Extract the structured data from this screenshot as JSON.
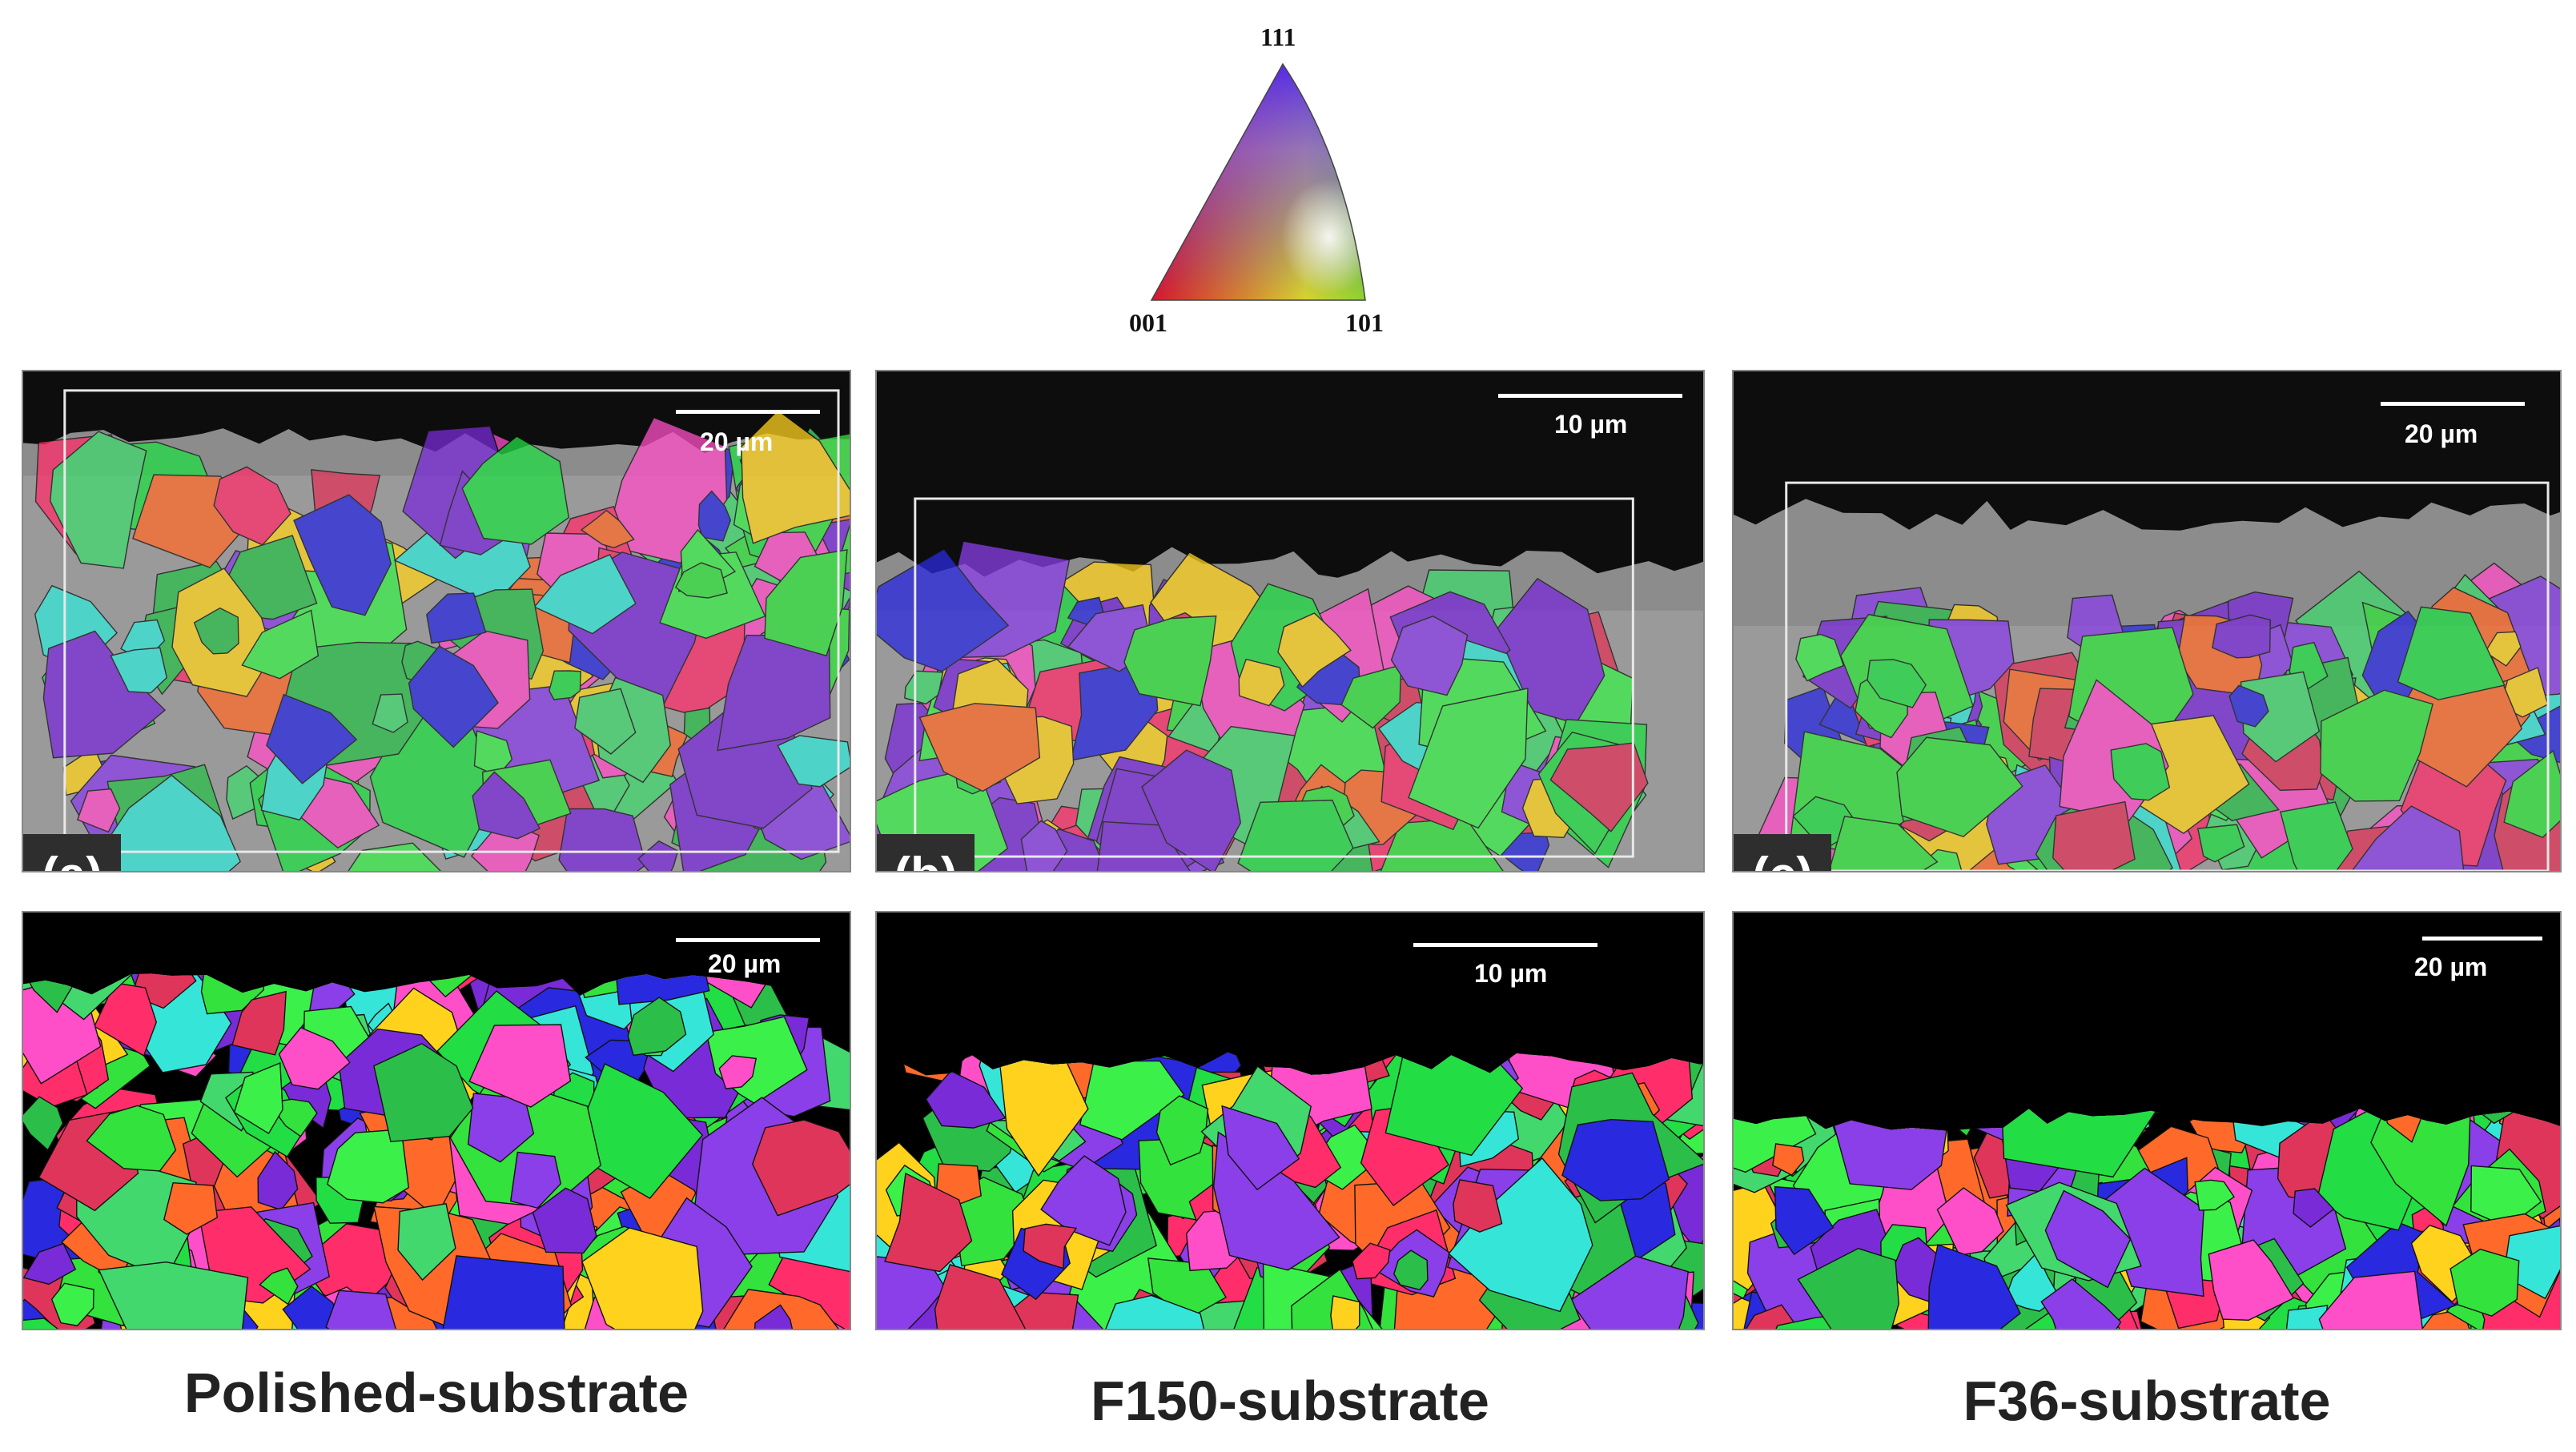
{
  "ipf": {
    "top_label": "111",
    "left_label": "001",
    "right_label": "101"
  },
  "panels": [
    {
      "tag": "(a)",
      "sem_scale": "20 µm",
      "ebsd_scale": "20 µm",
      "caption": "Polished-substrate"
    },
    {
      "tag": "(b)",
      "sem_scale": "10 µm",
      "ebsd_scale": "10 µm",
      "caption": "F150-substrate"
    },
    {
      "tag": "(c)",
      "sem_scale": "20 µm",
      "ebsd_scale": "20 µm",
      "caption": "F36-substrate"
    }
  ],
  "colors": {
    "grain_red": "#e0355a",
    "grain_green": "#2edb3a",
    "grain_blue": "#2a2ad8",
    "background": "#000000"
  }
}
